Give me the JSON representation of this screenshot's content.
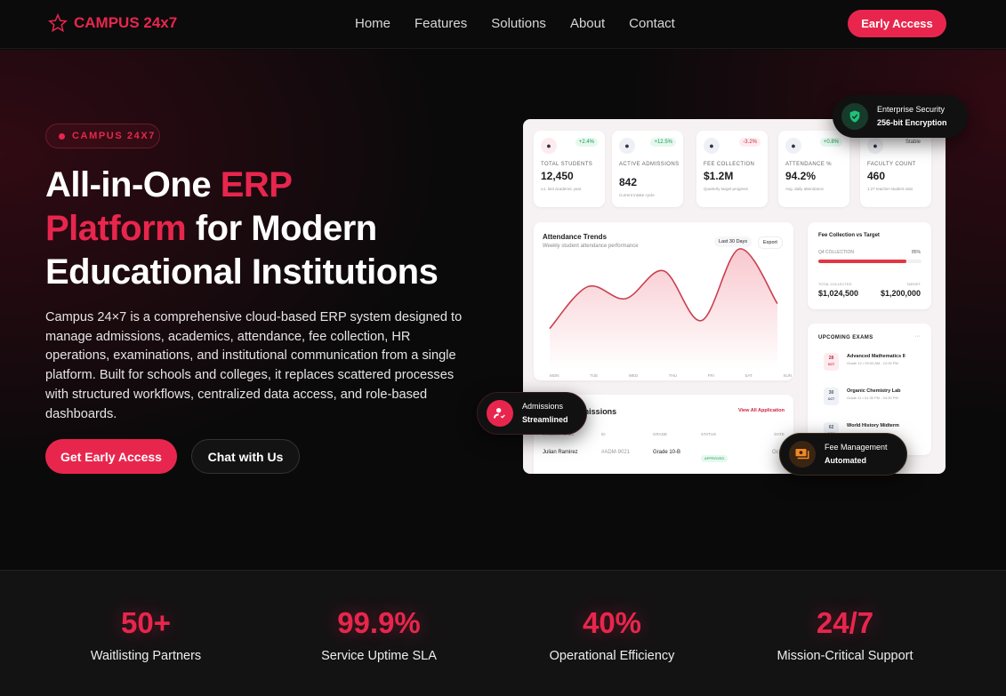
{
  "nav": {
    "brand": "CAMPUS 24x7",
    "links": [
      "Home",
      "Features",
      "Solutions",
      "About",
      "Contact"
    ],
    "cta": "Early Access"
  },
  "hero": {
    "pill": "CAMPUS 24X7",
    "title_1": "All-in-One ",
    "title_red_1": "ERP",
    "title_red_2": "Platform",
    "title_2": " for Modern",
    "title_3": "Educational Institutions",
    "description": "Campus 24×7 is a comprehensive cloud-based ERP system designed to manage admissions, academics, attendance, fee collection, HR operations, examinations, and institutional communication from a single platform. Built for schools and colleges, it replaces scattered processes with structured workflows, centralized data access, and role-based dashboards.",
    "primary_button": "Get Early Access",
    "secondary_button": "Chat with Us"
  },
  "dashboard": {
    "stats": [
      {
        "icon": "users-icon",
        "change": "+2.4%",
        "trend": "up",
        "label": "TOTAL STUDENTS",
        "value": "12,450",
        "sub": "v.s. last academic year"
      },
      {
        "icon": "user-check-icon",
        "change": "+12.5%",
        "trend": "up",
        "label": "ACTIVE ADMISSIONS",
        "value": "842",
        "sub": "Current intake cycle"
      },
      {
        "icon": "money-icon",
        "change": "-3.2%",
        "trend": "down",
        "label": "FEE COLLECTION",
        "value": "$1.2M",
        "sub": "Quarterly target progress"
      },
      {
        "icon": "calendar-icon",
        "change": "+0.8%",
        "trend": "up",
        "label": "ATTENDANCE %",
        "value": "94.2%",
        "sub": "Avg. daily attendance"
      },
      {
        "icon": "briefcase-icon",
        "change": "Stable",
        "trend": "flat",
        "label": "FACULTY COUNT",
        "value": "460",
        "sub": "1:27 teacher-student ratio"
      }
    ],
    "attendance": {
      "title": "Attendance Trends",
      "subtitle": "Weekly student attendance performance",
      "range": "Last 30 Days",
      "export": "Export",
      "days": [
        "MON",
        "TUE",
        "WED",
        "THU",
        "FRI",
        "SAT",
        "SUN"
      ],
      "trend": [
        20,
        62,
        50,
        78,
        28,
        100,
        45
      ]
    },
    "fee": {
      "title": "Fee Collection vs Target",
      "label": "Q4 COLLECTION",
      "percent": 85,
      "percent_label": "85%",
      "collected_label": "TOTAL COLLECTED",
      "collected": "$1,024,500",
      "target_label": "TARGET",
      "target": "$1,200,000"
    },
    "exams": {
      "title": "UPCOMING EXAMS",
      "more": "···",
      "items": [
        {
          "day": "28",
          "month": "OCT",
          "name": "Advanced Mathematics II",
          "meta": "Grade 12 • 09:00 AM - 12:00 PM"
        },
        {
          "day": "30",
          "month": "OCT",
          "name": "Organic Chemistry Lab",
          "meta": "Grade 11 • 01:30 PM - 04:30 PM"
        },
        {
          "day": "02",
          "month": "NOV",
          "name": "World History Midterm",
          "meta": ""
        }
      ]
    },
    "admissions": {
      "title": "Recent Admissions",
      "title_visible": "issions",
      "link": "View All Application",
      "columns": [
        "STUDENT NAME",
        "ID",
        "GRADE",
        "STATUS",
        "DATE"
      ],
      "rows": [
        [
          "Julian Ramirez",
          "#ADM-9021",
          "Grade 10-B",
          "APPROVED",
          "Oct 2 202"
        ]
      ]
    }
  },
  "floats": {
    "security_title": "Enterprise Security",
    "security_sub": "256-bit Encryption",
    "admissions_title": "Admissions",
    "admissions_sub": "Streamlined",
    "fee_title": "Fee Management",
    "fee_sub": "Automated"
  },
  "stats": [
    {
      "value": "50+",
      "label": "Waitlisting Partners"
    },
    {
      "value": "99.9%",
      "label": "Service Uptime SLA"
    },
    {
      "value": "40%",
      "label": "Operational Efficiency"
    },
    {
      "value": "24/7",
      "label": "Mission-Critical Support"
    }
  ],
  "colors": {
    "accent": "#e8264d",
    "security": "#1fbf7a",
    "fee": "#f08a24"
  }
}
